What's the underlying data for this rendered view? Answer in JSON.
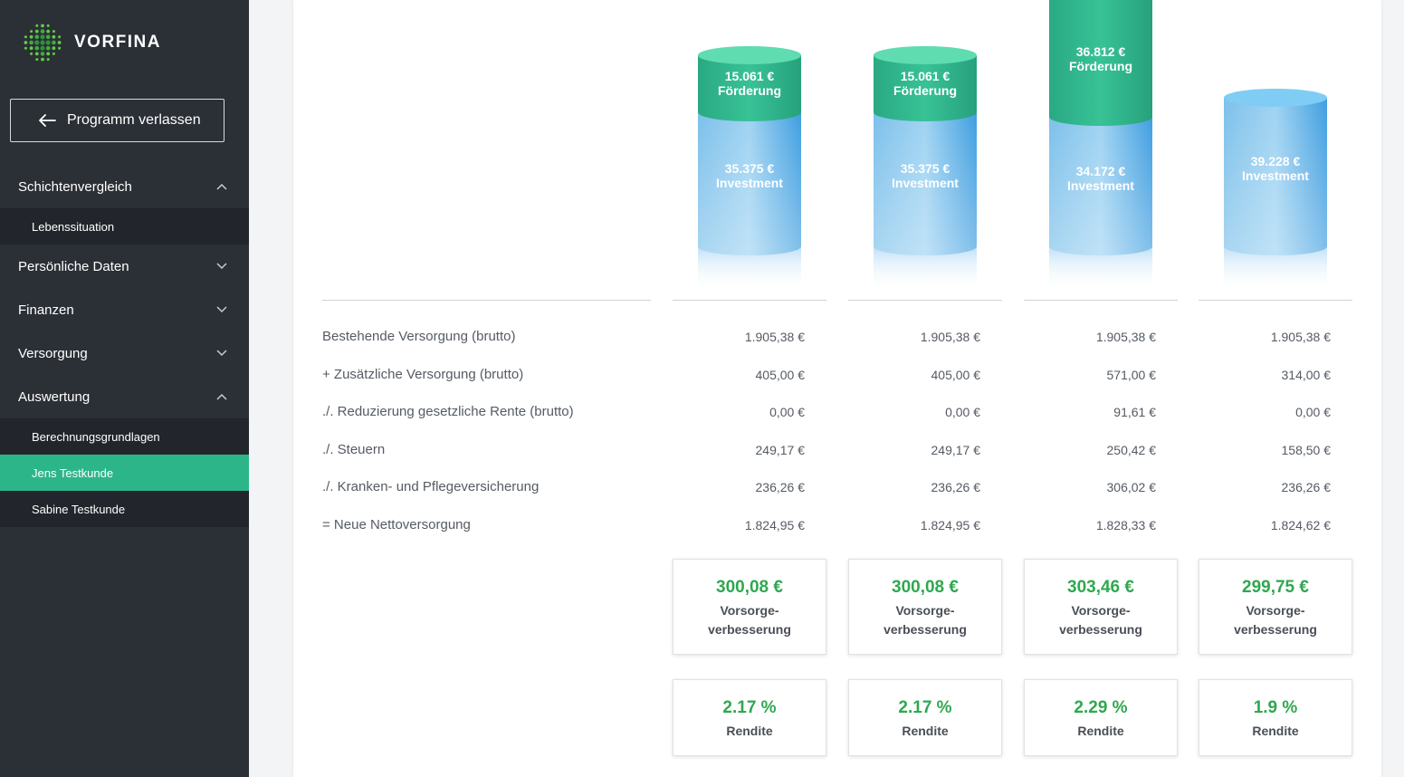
{
  "app": {
    "logo_text": "VORFINA"
  },
  "sidebar": {
    "exit_label": "Programm verlassen",
    "sections": [
      {
        "label": "Schichtenvergleich",
        "expanded": true,
        "subitems": [
          {
            "label": "Lebenssituation",
            "active": false
          }
        ]
      },
      {
        "label": "Persönliche Daten",
        "expanded": false,
        "subitems": []
      },
      {
        "label": "Finanzen",
        "expanded": false,
        "subitems": []
      },
      {
        "label": "Versorgung",
        "expanded": false,
        "subitems": []
      },
      {
        "label": "Auswertung",
        "expanded": true,
        "subitems": [
          {
            "label": "Berechnungsgrundlagen",
            "active": false
          },
          {
            "label": "Jens Testkunde",
            "active": true
          },
          {
            "label": "Sabine Testkunde",
            "active": false
          }
        ]
      }
    ]
  },
  "colors": {
    "accent": "#2db58a",
    "sidebar": "#2b2f36",
    "green_text": "#2fa84f",
    "foerderung": "#2db58a",
    "investment": "#5aabe6"
  },
  "chart_data": {
    "type": "stacked-cylinder",
    "columns": [
      {
        "foerderung_value": 15061,
        "foerderung_text": "15.061 €",
        "foerderung_label": "Förderung",
        "investment_value": 35375,
        "investment_text": "35.375 €",
        "investment_label": "Investment"
      },
      {
        "foerderung_value": 15061,
        "foerderung_text": "15.061 €",
        "foerderung_label": "Förderung",
        "investment_value": 35375,
        "investment_text": "35.375 €",
        "investment_label": "Investment"
      },
      {
        "foerderung_value": 36812,
        "foerderung_text": "36.812 €",
        "foerderung_label": "Förderung",
        "investment_value": 34172,
        "investment_text": "34.172 €",
        "investment_label": "Investment"
      },
      {
        "foerderung_value": 0,
        "foerderung_text": "",
        "foerderung_label": "",
        "investment_value": 39228,
        "investment_text": "39.228 €",
        "investment_label": "Investment"
      }
    ]
  },
  "table": {
    "rows": [
      {
        "label": "Bestehende Versorgung (brutto)",
        "values": [
          "1.905,38 €",
          "1.905,38 €",
          "1.905,38 €",
          "1.905,38 €"
        ]
      },
      {
        "label": "+ Zusätzliche Versorgung (brutto)",
        "values": [
          "405,00 €",
          "405,00 €",
          "571,00 €",
          "314,00 €"
        ]
      },
      {
        "label": "./. Reduzierung gesetzliche Rente (brutto)",
        "values": [
          "0,00 €",
          "0,00 €",
          "91,61 €",
          "0,00 €"
        ]
      },
      {
        "label": "./. Steuern",
        "values": [
          "249,17 €",
          "249,17 €",
          "250,42 €",
          "158,50 €"
        ]
      },
      {
        "label": "./. Kranken- und Pflegeversicherung",
        "values": [
          "236,26 €",
          "236,26 €",
          "306,02 €",
          "236,26 €"
        ]
      },
      {
        "label": "= Neue Nettoversorgung",
        "values": [
          "1.824,95 €",
          "1.824,95 €",
          "1.828,33 €",
          "1.824,62 €"
        ]
      }
    ]
  },
  "improvement": {
    "label_line1": "Vorsorge-",
    "label_line2": "verbesserung",
    "values": [
      "300,08 €",
      "300,08 €",
      "303,46 €",
      "299,75 €"
    ]
  },
  "rendite": {
    "label": "Rendite",
    "values": [
      "2.17 %",
      "2.17 %",
      "2.29 %",
      "1.9 %"
    ]
  }
}
